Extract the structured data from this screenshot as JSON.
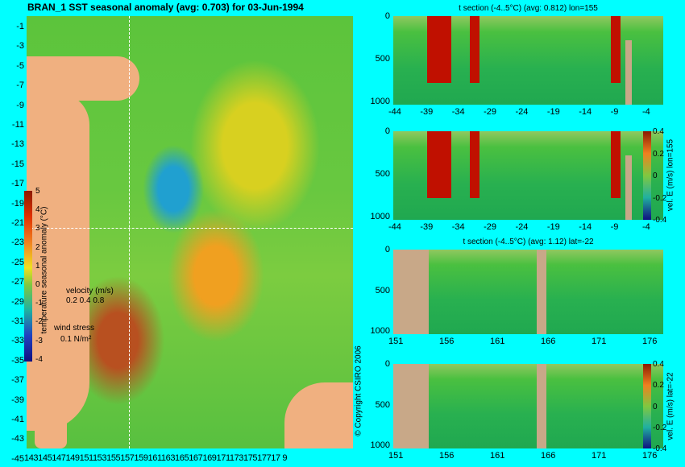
{
  "map": {
    "title": "BRAN_1 SST seasonal anomaly (avg: 0.703) for 03-Jun-1994",
    "lat_ticks": [
      "-1",
      "-3",
      "-5",
      "-7",
      "-9",
      "-11",
      "-13",
      "-15",
      "-17",
      "-19",
      "-21",
      "-23",
      "-25",
      "-27",
      "-29",
      "-31",
      "-33",
      "-35",
      "-37",
      "-39",
      "-41",
      "-43",
      "-45"
    ],
    "lon_ticks": "14314514714915115315515715916116316516716917117317517717 9",
    "colorbar_ticks": [
      "5",
      "4",
      "3",
      "2",
      "1",
      "0",
      "-1",
      "-2",
      "-3",
      "-4"
    ],
    "colorbar_label": "temperature seasonal anomaly (°C)",
    "velocity_label": "velocity (m/s)",
    "velocity_values": "0.2 0.4 0.8",
    "wind_label": "wind stress",
    "wind_value": "0.1 N/m²"
  },
  "copyright": "© Copyright CSIRO 2006",
  "sections": [
    {
      "title": "t section (-4..5°C) (avg: 0.812) lon=155",
      "x_ticks": [
        "-44",
        "-39",
        "-34",
        "-29",
        "-24",
        "-19",
        "-14",
        "-9",
        "-4"
      ],
      "y_ticks": [
        "0",
        "500",
        "1000"
      ]
    },
    {
      "title": "",
      "x_ticks": [
        "-44",
        "-39",
        "-34",
        "-29",
        "-24",
        "-19",
        "-14",
        "-9",
        "-4"
      ],
      "y_ticks": [
        "0",
        "500",
        "1000"
      ],
      "colorbar_ticks": [
        "0.4",
        "0.2",
        "0",
        "-0.2",
        "-0.4"
      ],
      "colorbar_label": "vel. E (m/s) lon=155"
    },
    {
      "title": "t section (-4..5°C) (avg: 1.12) lat=-22",
      "x_ticks": [
        "151",
        "156",
        "161",
        "166",
        "171",
        "176"
      ],
      "y_ticks": [
        "0",
        "500",
        "1000"
      ]
    },
    {
      "title": "",
      "x_ticks": [
        "151",
        "156",
        "161",
        "166",
        "171",
        "176"
      ],
      "y_ticks": [
        "0",
        "500",
        "1000"
      ],
      "colorbar_ticks": [
        "0.4",
        "0.2",
        "0",
        "-0.2",
        "-0.4"
      ],
      "colorbar_label": "vel. E (m/s) lat=-22"
    }
  ]
}
